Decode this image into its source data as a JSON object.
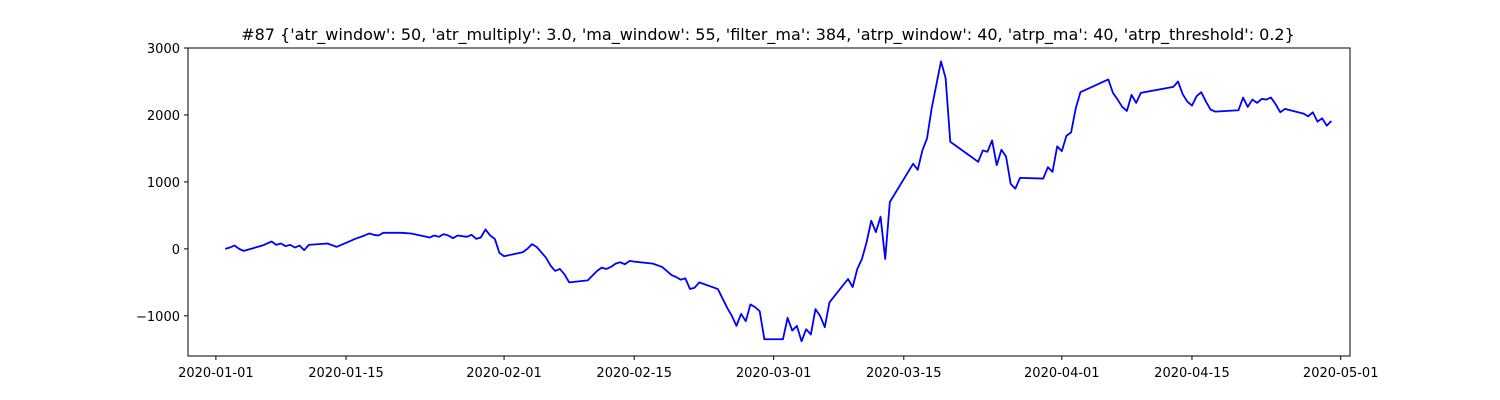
{
  "chart_data": {
    "type": "line",
    "title": "#87 {'atr_window': 50, 'atr_multiply': 3.0, 'ma_window': 55, 'filter_ma': 384, 'atrp_window': 40, 'atrp_ma': 40, 'atrp_threshold': 0.2}",
    "xlabel": "",
    "ylabel": "",
    "xlim": [
      "2019-12-29",
      "2020-05-02"
    ],
    "ylim": [
      -1600,
      3000
    ],
    "yticks": [
      -1000,
      0,
      1000,
      2000,
      3000
    ],
    "ytick_labels": [
      "−1000",
      "0",
      "1000",
      "2000",
      "3000"
    ],
    "xticks": [
      "2020-01-01",
      "2020-01-15",
      "2020-02-01",
      "2020-02-15",
      "2020-03-01",
      "2020-03-15",
      "2020-04-01",
      "2020-04-15",
      "2020-05-01"
    ],
    "grid": false,
    "legend": "none",
    "series": [
      {
        "color": "#0000ff",
        "points": [
          [
            "2020-01-02",
            0
          ],
          [
            "2020-01-02 12:00",
            20
          ],
          [
            "2020-01-03",
            50
          ],
          [
            "2020-01-03 12:00",
            0
          ],
          [
            "2020-01-04",
            -30
          ],
          [
            "2020-01-06",
            50
          ],
          [
            "2020-01-07",
            110
          ],
          [
            "2020-01-07 12:00",
            60
          ],
          [
            "2020-01-08",
            80
          ],
          [
            "2020-01-08 12:00",
            40
          ],
          [
            "2020-01-09",
            60
          ],
          [
            "2020-01-09 12:00",
            20
          ],
          [
            "2020-01-10",
            50
          ],
          [
            "2020-01-10 12:00",
            -20
          ],
          [
            "2020-01-11",
            60
          ],
          [
            "2020-01-13",
            80
          ],
          [
            "2020-01-14",
            30
          ],
          [
            "2020-01-14 12:00",
            60
          ],
          [
            "2020-01-15",
            90
          ],
          [
            "2020-01-15 12:00",
            120
          ],
          [
            "2020-01-16",
            150
          ],
          [
            "2020-01-17",
            200
          ],
          [
            "2020-01-17 12:00",
            230
          ],
          [
            "2020-01-18",
            210
          ],
          [
            "2020-01-18 12:00",
            200
          ],
          [
            "2020-01-19",
            240
          ],
          [
            "2020-01-21",
            240
          ],
          [
            "2020-01-22",
            230
          ],
          [
            "2020-01-23",
            200
          ],
          [
            "2020-01-24",
            170
          ],
          [
            "2020-01-24 12:00",
            200
          ],
          [
            "2020-01-25",
            180
          ],
          [
            "2020-01-25 12:00",
            220
          ],
          [
            "2020-01-26",
            200
          ],
          [
            "2020-01-26 12:00",
            160
          ],
          [
            "2020-01-27",
            200
          ],
          [
            "2020-01-28",
            180
          ],
          [
            "2020-01-28 12:00",
            210
          ],
          [
            "2020-01-29",
            150
          ],
          [
            "2020-01-29 12:00",
            170
          ],
          [
            "2020-01-30",
            290
          ],
          [
            "2020-01-30 12:00",
            200
          ],
          [
            "2020-01-31",
            150
          ],
          [
            "2020-01-31 12:00",
            -60
          ],
          [
            "2020-02-01",
            -110
          ],
          [
            "2020-02-03",
            -50
          ],
          [
            "2020-02-03 12:00",
            0
          ],
          [
            "2020-02-04",
            70
          ],
          [
            "2020-02-04 12:00",
            30
          ],
          [
            "2020-02-05",
            -50
          ],
          [
            "2020-02-05 12:00",
            -130
          ],
          [
            "2020-02-06",
            -250
          ],
          [
            "2020-02-06 12:00",
            -330
          ],
          [
            "2020-02-07",
            -300
          ],
          [
            "2020-02-07 12:00",
            -380
          ],
          [
            "2020-02-08",
            -500
          ],
          [
            "2020-02-10",
            -470
          ],
          [
            "2020-02-11",
            -330
          ],
          [
            "2020-02-11 12:00",
            -280
          ],
          [
            "2020-02-12",
            -300
          ],
          [
            "2020-02-12 12:00",
            -270
          ],
          [
            "2020-02-13",
            -220
          ],
          [
            "2020-02-13 12:00",
            -200
          ],
          [
            "2020-02-14",
            -230
          ],
          [
            "2020-02-14 12:00",
            -180
          ],
          [
            "2020-02-15",
            -190
          ],
          [
            "2020-02-17",
            -220
          ],
          [
            "2020-02-18",
            -270
          ],
          [
            "2020-02-19",
            -390
          ],
          [
            "2020-02-19 12:00",
            -420
          ],
          [
            "2020-02-20",
            -460
          ],
          [
            "2020-02-20 12:00",
            -440
          ],
          [
            "2020-02-21",
            -600
          ],
          [
            "2020-02-21 12:00",
            -580
          ],
          [
            "2020-02-22",
            -500
          ],
          [
            "2020-02-24",
            -600
          ],
          [
            "2020-02-25",
            -880
          ],
          [
            "2020-02-25 12:00",
            -1000
          ],
          [
            "2020-02-26",
            -1150
          ],
          [
            "2020-02-26 12:00",
            -970
          ],
          [
            "2020-02-27",
            -1080
          ],
          [
            "2020-02-27 12:00",
            -830
          ],
          [
            "2020-02-28",
            -870
          ],
          [
            "2020-02-28 12:00",
            -930
          ],
          [
            "2020-02-29",
            -1350
          ],
          [
            "2020-03-02",
            -1350
          ],
          [
            "2020-03-02 12:00",
            -1030
          ],
          [
            "2020-03-03",
            -1220
          ],
          [
            "2020-03-03 12:00",
            -1150
          ],
          [
            "2020-03-04",
            -1380
          ],
          [
            "2020-03-04 12:00",
            -1200
          ],
          [
            "2020-03-05",
            -1280
          ],
          [
            "2020-03-05 12:00",
            -900
          ],
          [
            "2020-03-06",
            -1000
          ],
          [
            "2020-03-06 12:00",
            -1170
          ],
          [
            "2020-03-07",
            -800
          ],
          [
            "2020-03-09",
            -450
          ],
          [
            "2020-03-09 12:00",
            -570
          ],
          [
            "2020-03-10",
            -300
          ],
          [
            "2020-03-10 12:00",
            -150
          ],
          [
            "2020-03-11",
            100
          ],
          [
            "2020-03-11 12:00",
            420
          ],
          [
            "2020-03-12",
            250
          ],
          [
            "2020-03-12 12:00",
            480
          ],
          [
            "2020-03-13",
            -150
          ],
          [
            "2020-03-13 12:00",
            700
          ],
          [
            "2020-03-16",
            1270
          ],
          [
            "2020-03-16 12:00",
            1180
          ],
          [
            "2020-03-17",
            1470
          ],
          [
            "2020-03-17 12:00",
            1650
          ],
          [
            "2020-03-18",
            2100
          ],
          [
            "2020-03-18 12:00",
            2450
          ],
          [
            "2020-03-19",
            2800
          ],
          [
            "2020-03-19 12:00",
            2550
          ],
          [
            "2020-03-20",
            1600
          ],
          [
            "2020-03-22",
            1400
          ],
          [
            "2020-03-23",
            1300
          ],
          [
            "2020-03-23 12:00",
            1470
          ],
          [
            "2020-03-24",
            1450
          ],
          [
            "2020-03-24 12:00",
            1620
          ],
          [
            "2020-03-25",
            1250
          ],
          [
            "2020-03-25 12:00",
            1480
          ],
          [
            "2020-03-26",
            1380
          ],
          [
            "2020-03-26 12:00",
            970
          ],
          [
            "2020-03-27",
            900
          ],
          [
            "2020-03-27 12:00",
            1060
          ],
          [
            "2020-03-30",
            1050
          ],
          [
            "2020-03-30 12:00",
            1220
          ],
          [
            "2020-03-31",
            1150
          ],
          [
            "2020-03-31 12:00",
            1530
          ],
          [
            "2020-04-01",
            1460
          ],
          [
            "2020-04-01 12:00",
            1690
          ],
          [
            "2020-04-02",
            1740
          ],
          [
            "2020-04-02 12:00",
            2100
          ],
          [
            "2020-04-03",
            2340
          ],
          [
            "2020-04-06",
            2530
          ],
          [
            "2020-04-06 12:00",
            2330
          ],
          [
            "2020-04-07",
            2230
          ],
          [
            "2020-04-07 12:00",
            2120
          ],
          [
            "2020-04-08",
            2060
          ],
          [
            "2020-04-08 12:00",
            2300
          ],
          [
            "2020-04-09",
            2180
          ],
          [
            "2020-04-09 12:00",
            2330
          ],
          [
            "2020-04-13",
            2420
          ],
          [
            "2020-04-13 12:00",
            2500
          ],
          [
            "2020-04-14",
            2310
          ],
          [
            "2020-04-14 12:00",
            2200
          ],
          [
            "2020-04-15",
            2140
          ],
          [
            "2020-04-15 12:00",
            2280
          ],
          [
            "2020-04-16",
            2340
          ],
          [
            "2020-04-16 12:00",
            2200
          ],
          [
            "2020-04-17",
            2080
          ],
          [
            "2020-04-17 12:00",
            2050
          ],
          [
            "2020-04-20",
            2070
          ],
          [
            "2020-04-20 12:00",
            2260
          ],
          [
            "2020-04-21",
            2120
          ],
          [
            "2020-04-21 12:00",
            2230
          ],
          [
            "2020-04-22",
            2180
          ],
          [
            "2020-04-22 12:00",
            2240
          ],
          [
            "2020-04-23",
            2230
          ],
          [
            "2020-04-23 12:00",
            2260
          ],
          [
            "2020-04-24",
            2160
          ],
          [
            "2020-04-24 12:00",
            2040
          ],
          [
            "2020-04-25",
            2090
          ],
          [
            "2020-04-27",
            2020
          ],
          [
            "2020-04-27 12:00",
            1980
          ],
          [
            "2020-04-28",
            2040
          ],
          [
            "2020-04-28 12:00",
            1900
          ],
          [
            "2020-04-29",
            1950
          ],
          [
            "2020-04-29 12:00",
            1840
          ],
          [
            "2020-04-30",
            1910
          ]
        ]
      }
    ]
  }
}
